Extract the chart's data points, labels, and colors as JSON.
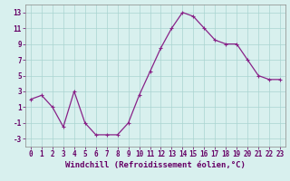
{
  "x": [
    0,
    1,
    2,
    3,
    4,
    5,
    6,
    7,
    8,
    9,
    10,
    11,
    12,
    13,
    14,
    15,
    16,
    17,
    18,
    19,
    20,
    21,
    22,
    23
  ],
  "y": [
    2,
    2.5,
    1,
    -1.5,
    3,
    -1,
    -2.5,
    -2.5,
    -2.5,
    -1,
    2.5,
    5.5,
    8.5,
    11,
    13,
    12.5,
    11,
    9.5,
    9,
    9,
    7,
    5,
    4.5,
    4.5
  ],
  "line_color": "#882288",
  "marker": "+",
  "marker_size": 3,
  "marker_lw": 0.8,
  "line_width": 0.9,
  "bg_color": "#d8f0ee",
  "grid_color": "#aad4d0",
  "xlabel": "Windchill (Refroidissement éolien,°C)",
  "xlabel_fontsize": 6.5,
  "tick_fontsize": 5.5,
  "ylim": [
    -4,
    14
  ],
  "xlim": [
    -0.5,
    23.5
  ],
  "yticks": [
    -3,
    -1,
    1,
    3,
    5,
    7,
    9,
    11,
    13
  ],
  "xticks": [
    0,
    1,
    2,
    3,
    4,
    5,
    6,
    7,
    8,
    9,
    10,
    11,
    12,
    13,
    14,
    15,
    16,
    17,
    18,
    19,
    20,
    21,
    22,
    23
  ]
}
